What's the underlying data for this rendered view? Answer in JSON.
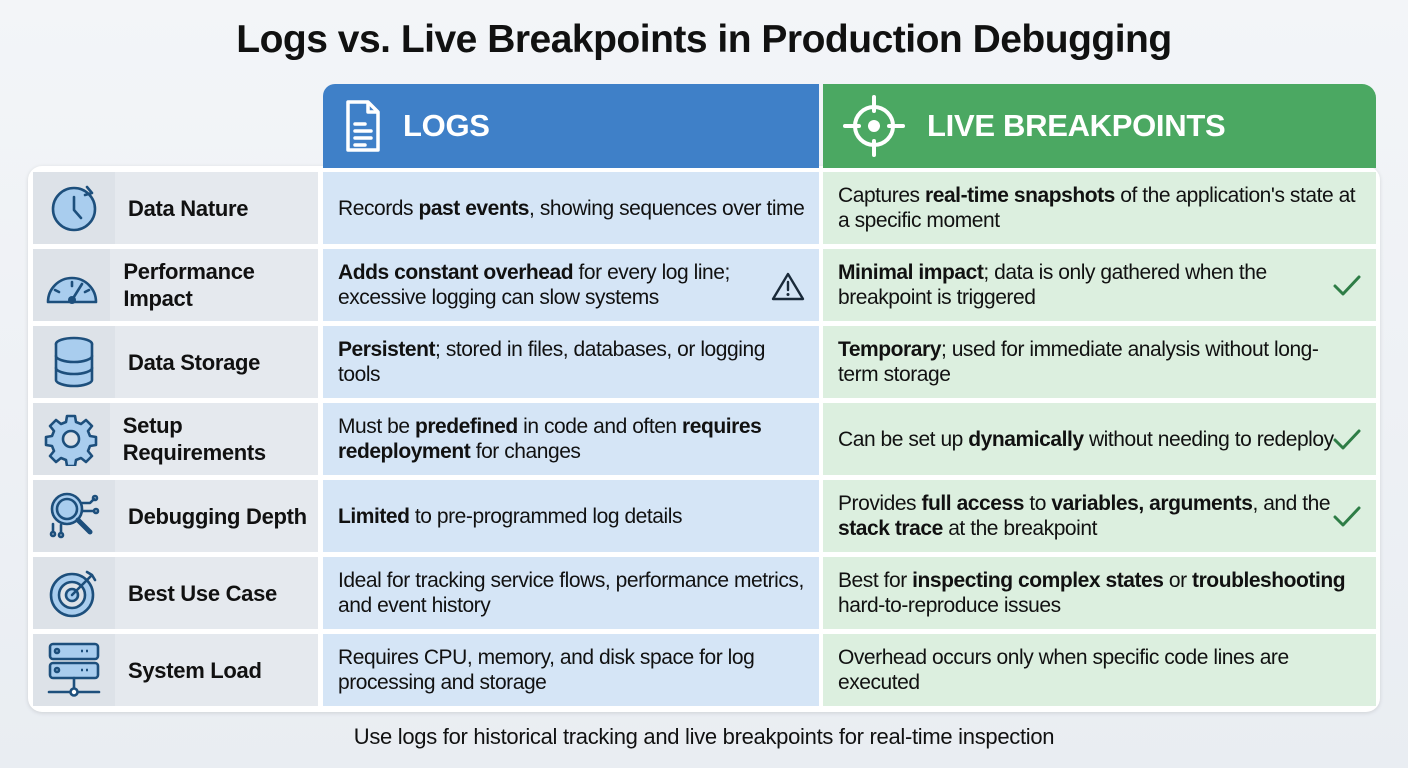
{
  "title": "Logs vs. Live Breakpoints in Production Debugging",
  "columns": {
    "logs": {
      "label": "LOGS",
      "icon": "document-icon",
      "color": "#3f80c8"
    },
    "live": {
      "label": "LIVE BREAKPOINTS",
      "icon": "crosshair-icon",
      "color": "#4ba862"
    }
  },
  "rows": [
    {
      "label": "Data Nature",
      "icon": "clock-icon",
      "logs": [
        {
          "t": "Records "
        },
        {
          "t": "past events",
          "b": true
        },
        {
          "t": ", showing sequences over time"
        }
      ],
      "live": [
        {
          "t": "Captures "
        },
        {
          "t": "real-time snapshots",
          "b": true
        },
        {
          "t": " of the application's state at a specific moment"
        }
      ]
    },
    {
      "label": "Performance Impact",
      "icon": "speedometer-icon",
      "logs_mark": "warning-icon",
      "live_mark": "check-icon",
      "logs": [
        {
          "t": "Adds constant overhead",
          "b": true
        },
        {
          "t": " for every log line; excessive logging can slow systems"
        }
      ],
      "live": [
        {
          "t": "Minimal impact",
          "b": true
        },
        {
          "t": "; data is only gathered when the breakpoint is triggered"
        }
      ]
    },
    {
      "label": "Data Storage",
      "icon": "database-icon",
      "logs": [
        {
          "t": "Persistent",
          "b": true
        },
        {
          "t": "; stored in files, databases, or logging tools"
        }
      ],
      "live": [
        {
          "t": "Temporary",
          "b": true
        },
        {
          "t": "; used for immediate analysis without long-term storage"
        }
      ]
    },
    {
      "label": "Setup Requirements",
      "icon": "gear-icon",
      "live_mark": "check-icon",
      "logs": [
        {
          "t": "Must be "
        },
        {
          "t": "predefined",
          "b": true
        },
        {
          "t": " in code and often "
        },
        {
          "t": "requires redeployment",
          "b": true
        },
        {
          "t": " for changes"
        }
      ],
      "live": [
        {
          "t": "Can be set up "
        },
        {
          "t": "dynamically",
          "b": true
        },
        {
          "t": " without needing to redeploy"
        }
      ]
    },
    {
      "label": "Debugging Depth",
      "icon": "magnifier-circuit-icon",
      "live_mark": "check-icon",
      "logs": [
        {
          "t": "Limited",
          "b": true
        },
        {
          "t": " to pre-programmed log details"
        }
      ],
      "live": [
        {
          "t": "Provides "
        },
        {
          "t": "full access",
          "b": true
        },
        {
          "t": " to "
        },
        {
          "t": "variables, arguments",
          "b": true
        },
        {
          "t": ", and the "
        },
        {
          "t": "stack trace",
          "b": true
        },
        {
          "t": " at the breakpoint"
        }
      ]
    },
    {
      "label": "Best Use Case",
      "icon": "target-icon",
      "logs": [
        {
          "t": "Ideal for tracking service flows, performance metrics, and event history"
        }
      ],
      "live": [
        {
          "t": "Best for "
        },
        {
          "t": "inspecting complex states",
          "b": true
        },
        {
          "t": " or "
        },
        {
          "t": "troubleshooting",
          "b": true
        },
        {
          "t": " hard-to-reproduce issues"
        }
      ]
    },
    {
      "label": "System Load",
      "icon": "server-icon",
      "logs": [
        {
          "t": "Requires CPU, memory, and disk space for log processing and storage"
        }
      ],
      "live": [
        {
          "t": "Overhead occurs only when specific code lines are executed"
        }
      ]
    }
  ],
  "footer": "Use logs for historical tracking and live breakpoints for real-time inspection"
}
